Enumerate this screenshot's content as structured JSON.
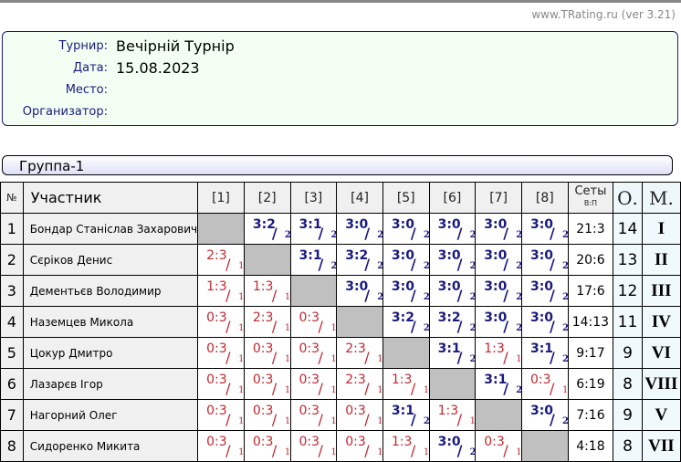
{
  "site": "www.TRating.ru (ver 3.21)",
  "info": [
    {
      "label": "Турнир:",
      "value": "Вечірній Турнір"
    },
    {
      "label": "Дата:",
      "value": "15.08.2023"
    },
    {
      "label": "Место:",
      "value": ""
    },
    {
      "label": "Организатор:",
      "value": ""
    }
  ],
  "group": "Группа-1",
  "headers": {
    "num": "№",
    "participant": "Участник",
    "cols": [
      "[1]",
      "[2]",
      "[3]",
      "[4]",
      "[5]",
      "[6]",
      "[7]",
      "[8]"
    ],
    "sets": "Сеты",
    "sets_sub": "В:П",
    "points": "О.",
    "place": "М."
  },
  "colors": {
    "win": "#1a1a80",
    "loss": "#c0282f",
    "self": "#c0c0c0"
  },
  "players": [
    {
      "n": "1",
      "name": "Бондар Станіслав Захарович",
      "res": [
        "",
        "3:2/2",
        "3:1/2",
        "3:0/2",
        "3:0/2",
        "3:0/2",
        "3:0/2",
        "3:0/2"
      ],
      "sets": "21:3",
      "pts": "14",
      "place": "I"
    },
    {
      "n": "2",
      "name": "Сєріков Денис",
      "res": [
        "2:3/1",
        "",
        "3:1/2",
        "3:2/2",
        "3:0/2",
        "3:0/2",
        "3:0/2",
        "3:0/2"
      ],
      "sets": "20:6",
      "pts": "13",
      "place": "II"
    },
    {
      "n": "3",
      "name": "Дементьєв Володимир",
      "res": [
        "1:3/1",
        "1:3/1",
        "",
        "3:0/2",
        "3:0/2",
        "3:0/2",
        "3:0/2",
        "3:0/2"
      ],
      "sets": "17:6",
      "pts": "12",
      "place": "III"
    },
    {
      "n": "4",
      "name": "Наземцев Микола",
      "res": [
        "0:3/1",
        "2:3/1",
        "0:3/1",
        "",
        "3:2/2",
        "3:2/2",
        "3:0/2",
        "3:0/2"
      ],
      "sets": "14:13",
      "pts": "11",
      "place": "IV"
    },
    {
      "n": "5",
      "name": "Цокур Дмитро",
      "res": [
        "0:3/1",
        "0:3/1",
        "0:3/1",
        "2:3/1",
        "",
        "3:1/2",
        "1:3/1",
        "3:1/2"
      ],
      "sets": "9:17",
      "pts": "9",
      "place": "VI"
    },
    {
      "n": "6",
      "name": "Лазарєв Ігор",
      "res": [
        "0:3/1",
        "0:3/1",
        "0:3/1",
        "2:3/1",
        "1:3/1",
        "",
        "3:1/2",
        "0:3/1"
      ],
      "sets": "6:19",
      "pts": "8",
      "place": "VIII"
    },
    {
      "n": "7",
      "name": "Нагорний Олег",
      "res": [
        "0:3/1",
        "0:3/1",
        "0:3/1",
        "0:3/1",
        "3:1/2",
        "1:3/1",
        "",
        "3:0/2"
      ],
      "sets": "7:16",
      "pts": "9",
      "place": "V"
    },
    {
      "n": "8",
      "name": "Сидоренко Микита",
      "res": [
        "0:3/1",
        "0:3/1",
        "0:3/1",
        "0:3/1",
        "1:3/1",
        "3:0/2",
        "0:3/1",
        ""
      ],
      "sets": "4:18",
      "pts": "8",
      "place": "VII"
    }
  ]
}
